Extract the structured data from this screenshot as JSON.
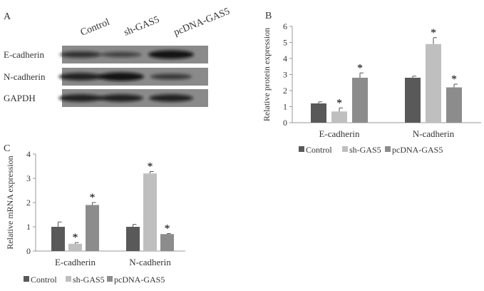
{
  "panel_a": {
    "label": "A",
    "lanes": [
      "Control",
      "sh-GAS5",
      "pcDNA-GAS5"
    ],
    "rows": [
      {
        "name": "E-cadherin",
        "intensity": [
          0.6,
          0.4,
          1.0
        ]
      },
      {
        "name": "N-cadherin",
        "intensity": [
          0.8,
          1.0,
          0.5
        ]
      },
      {
        "name": "GAPDH",
        "intensity": [
          0.8,
          0.8,
          0.8
        ]
      }
    ]
  },
  "colors": {
    "Control": "#595959",
    "sh-GAS5": "#bfbfbf",
    "pcDNA-GAS5": "#8c8c8c"
  },
  "chart_data": [
    {
      "panel_label": "B",
      "type": "bar",
      "ylabel": "Relative protein expression",
      "ylim": [
        0,
        6
      ],
      "yticks": [
        "0",
        "1",
        "2",
        "3",
        "4",
        "5",
        "6"
      ],
      "categories": [
        "E-cadherin",
        "N-cadherin"
      ],
      "legend_position": "bottom",
      "series": [
        {
          "name": "Control",
          "values": [
            1.2,
            2.8
          ],
          "errors": [
            0.1,
            0.1
          ],
          "significant": [
            false,
            false
          ]
        },
        {
          "name": "sh-GAS5",
          "values": [
            0.7,
            4.9
          ],
          "errors": [
            0.22,
            0.4
          ],
          "significant": [
            true,
            true
          ]
        },
        {
          "name": "pcDNA-GAS5",
          "values": [
            2.8,
            2.2
          ],
          "errors": [
            0.3,
            0.2
          ],
          "significant": [
            true,
            true
          ]
        }
      ],
      "significance_mark": "*"
    },
    {
      "panel_label": "C",
      "type": "bar",
      "ylabel": "Relative mRNA expression",
      "ylim": [
        0,
        4
      ],
      "yticks": [
        "0",
        "1",
        "2",
        "3",
        "4"
      ],
      "categories": [
        "E-cadherin",
        "N-cadherin"
      ],
      "legend_position": "bottom",
      "series": [
        {
          "name": "Control",
          "values": [
            1.0,
            1.0
          ],
          "errors": [
            0.2,
            0.1
          ],
          "significant": [
            false,
            false
          ]
        },
        {
          "name": "sh-GAS5",
          "values": [
            0.3,
            3.2
          ],
          "errors": [
            0.05,
            0.08
          ],
          "significant": [
            true,
            true
          ]
        },
        {
          "name": "pcDNA-GAS5",
          "values": [
            1.9,
            0.7
          ],
          "errors": [
            0.1,
            0.02
          ],
          "significant": [
            true,
            true
          ]
        }
      ],
      "significance_mark": "*"
    }
  ]
}
